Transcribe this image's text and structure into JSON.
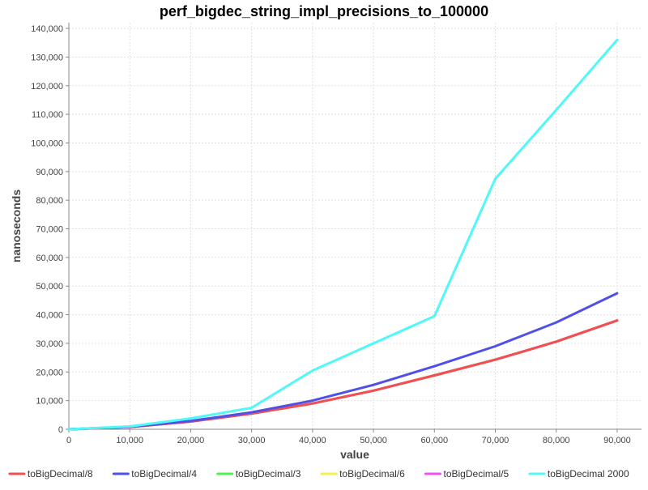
{
  "chart_data": {
    "type": "line",
    "title": "perf_bigdec_string_impl_precisions_to_100000",
    "xlabel": "value",
    "ylabel": "nanoseconds",
    "xlim": [
      0,
      94000
    ],
    "ylim": [
      0,
      142000
    ],
    "x_ticks": [
      0,
      10000,
      20000,
      30000,
      40000,
      50000,
      60000,
      70000,
      80000,
      90000
    ],
    "x_tick_labels": [
      "0",
      "10,000",
      "20,000",
      "30,000",
      "40,000",
      "50,000",
      "60,000",
      "70,000",
      "80,000",
      "90,000"
    ],
    "y_ticks": [
      0,
      10000,
      20000,
      30000,
      40000,
      50000,
      60000,
      70000,
      80000,
      90000,
      100000,
      110000,
      120000,
      130000,
      140000
    ],
    "y_tick_labels": [
      "0",
      "10,000",
      "20,000",
      "30,000",
      "40,000",
      "50,000",
      "60,000",
      "70,000",
      "80,000",
      "90,000",
      "100,000",
      "110,000",
      "120,000",
      "130,000",
      "140,000"
    ],
    "grid": true,
    "legend_position": "bottom",
    "x": [
      0,
      10000,
      20000,
      30000,
      40000,
      50000,
      60000,
      70000,
      80000,
      90000
    ],
    "series": [
      {
        "name": "toBigDecimal/8",
        "color": "#f05050",
        "values": [
          0,
          800,
          2700,
          5500,
          9000,
          13500,
          18800,
          24300,
          30600,
          38000
        ]
      },
      {
        "name": "toBigDecimal/4",
        "color": "#5050e8",
        "values": [
          0,
          850,
          2900,
          5900,
          10000,
          15500,
          22000,
          29000,
          37300,
          47500
        ]
      },
      {
        "name": "toBigDecimal/3",
        "color": "#50f050",
        "values": [
          0,
          800,
          2700,
          5500,
          9000,
          13500,
          18800,
          24300,
          30600,
          38000
        ]
      },
      {
        "name": "toBigDecimal/6",
        "color": "#f0f050",
        "values": [
          0,
          800,
          2700,
          5500,
          9000,
          13500,
          18800,
          24300,
          30600,
          38000
        ]
      },
      {
        "name": "toBigDecimal/5",
        "color": "#f050f0",
        "values": [
          0,
          800,
          2700,
          5500,
          9000,
          13500,
          18800,
          24300,
          30600,
          38000
        ]
      },
      {
        "name": "toBigDecimal 2000",
        "color": "#50f8f8",
        "values": [
          0,
          1000,
          3800,
          7500,
          20500,
          30000,
          39500,
          87500,
          111500,
          136000
        ]
      }
    ],
    "draw_order": [
      2,
      3,
      4,
      0,
      1,
      5
    ]
  }
}
